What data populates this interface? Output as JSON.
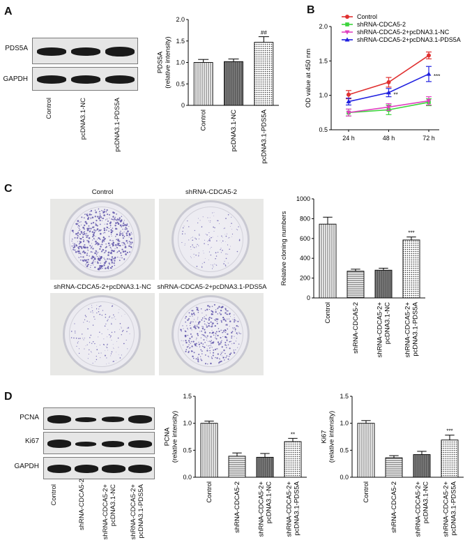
{
  "panels": {
    "A": "A",
    "B": "B",
    "C": "C",
    "D": "D"
  },
  "panelA": {
    "blot_rows": [
      "PDS5A",
      "GAPDH"
    ],
    "lanes": [
      "Control",
      "pcDNA3.1-NC",
      "pcDNA3.1-PDS5A"
    ]
  },
  "panelC": {
    "dish_titles": [
      "Control",
      "shRNA-CDCA5-2",
      "shRNA-CDCA5-2+pcDNA3.1-NC",
      "shRNA-CDCA5-2+pcDNA3.1-PDS5A"
    ]
  },
  "panelD": {
    "blot_rows": [
      "PCNA",
      "Ki67",
      "GAPDH"
    ],
    "lanes": [
      "Control",
      "shRNA-CDCA5-2",
      "shRNA-CDCA5-2+\npcDNA3.1-NC",
      "shRNA-CDCA5-2+\npcDNA3.1-PDS5A"
    ]
  },
  "chart_data": [
    {
      "id": "A_bar",
      "type": "bar",
      "categories": [
        "Control",
        "pcDNA3.1-NC",
        "pcDNA3.1-PDS5A"
      ],
      "values": [
        1.0,
        1.02,
        1.47
      ],
      "errors": [
        0.07,
        0.06,
        0.13
      ],
      "annotations": [
        "",
        "",
        "##"
      ],
      "ylabel": "PDS5A\n(relative intensity)",
      "ylim": [
        0,
        2.0
      ],
      "yticks": [
        "0",
        "0.5",
        "1.0",
        "1.5",
        "2.0"
      ],
      "patterns": [
        "vline",
        "hatch",
        "dots"
      ]
    },
    {
      "id": "B_line",
      "type": "line",
      "x": [
        "24 h",
        "48 h",
        "72 h"
      ],
      "ylabel": "OD value at 450 nm",
      "ylim": [
        0.5,
        2.0
      ],
      "yticks": [
        "0.5",
        "1.0",
        "1.5",
        "2.0"
      ],
      "series": [
        {
          "name": "Control",
          "color": "#e03030",
          "marker": "circle",
          "values": [
            1.01,
            1.19,
            1.58
          ],
          "errors": [
            0.06,
            0.07,
            0.05
          ],
          "annotations": [
            "",
            "",
            ""
          ]
        },
        {
          "name": "shRNA-CDCA5-2",
          "color": "#3bd43b",
          "marker": "square",
          "values": [
            0.75,
            0.79,
            0.9
          ],
          "errors": [
            0.05,
            0.07,
            0.05
          ],
          "annotations": [
            "",
            "",
            ""
          ]
        },
        {
          "name": "shRNA-CDCA5-2+pcDNA3.1-NC",
          "color": "#e040c0",
          "marker": "triangle-down",
          "values": [
            0.75,
            0.83,
            0.92
          ],
          "errors": [
            0.05,
            0.05,
            0.06
          ],
          "annotations": [
            "",
            "",
            ""
          ]
        },
        {
          "name": "shRNA-CDCA5-2+pcDNA3.1-PDS5A",
          "color": "#2020e0",
          "marker": "triangle-up",
          "values": [
            0.91,
            1.04,
            1.31
          ],
          "errors": [
            0.05,
            0.06,
            0.11
          ],
          "annotations": [
            "",
            "**",
            "***"
          ]
        }
      ]
    },
    {
      "id": "C_bar",
      "type": "bar",
      "categories": [
        "Control",
        "shRNA-CDCA5-2",
        "shRNA-CDCA5-2+\npcDNA3.1-NC",
        "shRNA-CDCA5-2+\npcDNA3.1-PDS5A"
      ],
      "values": [
        745,
        270,
        280,
        585
      ],
      "errors": [
        70,
        20,
        20,
        30
      ],
      "annotations": [
        "",
        "",
        "",
        "***"
      ],
      "ylabel": "Relative cloning numbers",
      "ylim": [
        0,
        1000
      ],
      "yticks": [
        "0",
        "200",
        "400",
        "600",
        "800",
        "1000"
      ],
      "patterns": [
        "vline",
        "hline",
        "hatch",
        "dots"
      ]
    },
    {
      "id": "D_bar1",
      "type": "bar",
      "categories": [
        "Control",
        "shRNA-CDCA5-2",
        "shRNA-CDCA5-2+\npcDNA3.1-NC",
        "shRNA-CDCA5-2+\npcDNA3.1-PDS5A"
      ],
      "values": [
        1.0,
        0.39,
        0.37,
        0.66
      ],
      "errors": [
        0.04,
        0.06,
        0.07,
        0.06
      ],
      "annotations": [
        "",
        "",
        "",
        "**"
      ],
      "ylabel": "PCNA\n(relative intensity)",
      "ylim": [
        0,
        1.5
      ],
      "yticks": [
        "0.0",
        "0.5",
        "1.0",
        "1.5"
      ],
      "patterns": [
        "vline",
        "hline",
        "hatch",
        "dots"
      ]
    },
    {
      "id": "D_bar2",
      "type": "bar",
      "categories": [
        "Control",
        "shRNA-CDCA5-2",
        "shRNA-CDCA5-2+\npcDNA3.1-NC",
        "shRNA-CDCA5-2+\npcDNA3.1-PDS5A"
      ],
      "values": [
        1.0,
        0.36,
        0.42,
        0.69
      ],
      "errors": [
        0.05,
        0.04,
        0.06,
        0.09
      ],
      "annotations": [
        "",
        "",
        "",
        "***"
      ],
      "ylabel": "Ki67\n(relative intensity)",
      "ylim": [
        0,
        1.5
      ],
      "yticks": [
        "0.0",
        "0.5",
        "1.0",
        "1.5"
      ],
      "patterns": [
        "vline",
        "hline",
        "hatch",
        "dots"
      ]
    }
  ]
}
